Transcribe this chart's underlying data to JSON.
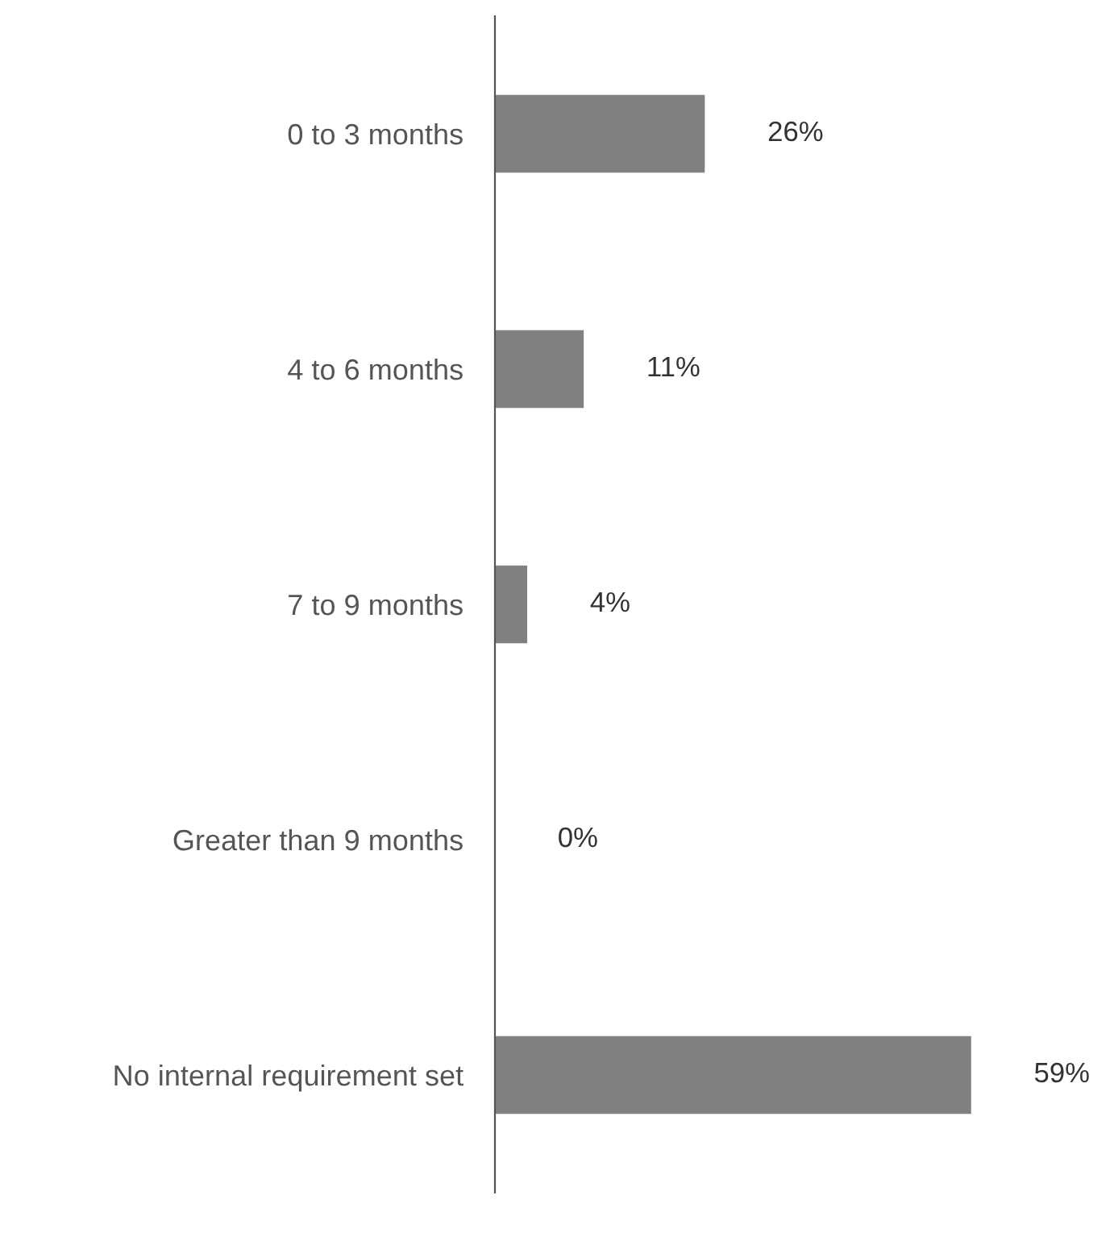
{
  "chart_data": {
    "type": "bar",
    "orientation": "horizontal",
    "categories": [
      "0 to 3 months",
      "4 to 6 months",
      "7 to 9 months",
      "Greater than 9 months",
      "No internal requirement set"
    ],
    "values": [
      26,
      11,
      4,
      0,
      59
    ],
    "value_labels": [
      "26%",
      "11%",
      "4%",
      "0%",
      "59%"
    ],
    "color": "#808083",
    "grid": false,
    "legend": false
  }
}
